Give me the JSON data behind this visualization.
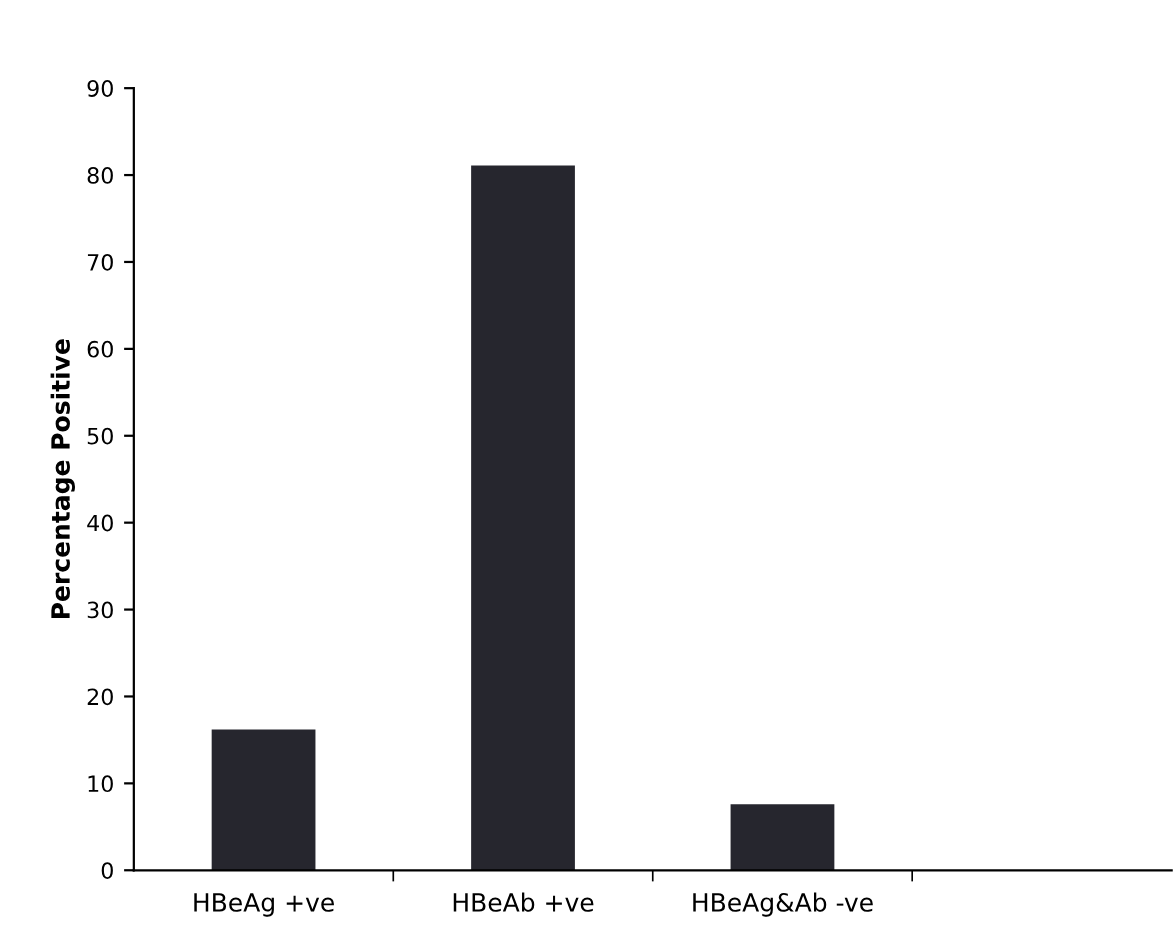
{
  "chart_data": {
    "type": "bar",
    "ylabel": "Percentage Positive",
    "categories": [
      "HBeAg +ve",
      "HBeAb +ve",
      "HBeAg&Ab -ve",
      null
    ],
    "values": [
      16.2,
      81.1,
      7.6,
      null
    ],
    "color": "#26262e",
    "ylim": [
      0,
      90
    ],
    "yticks": [
      0,
      10,
      20,
      30,
      40,
      50,
      60,
      70,
      80,
      90
    ],
    "grid": false,
    "legend": false
  }
}
